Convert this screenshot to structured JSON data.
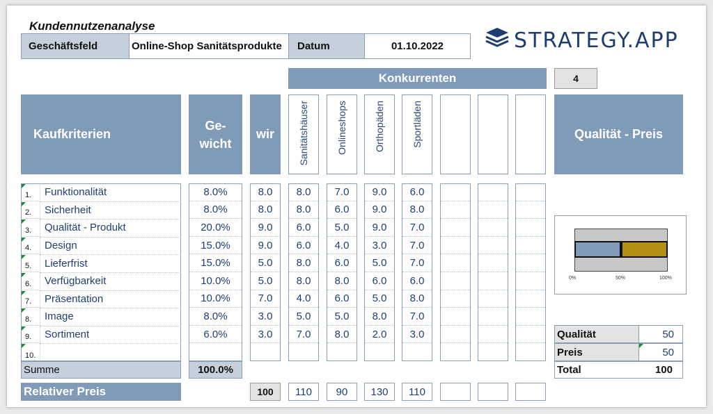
{
  "title": "Kundennutzenanalyse",
  "header": {
    "field_label": "Geschäftsfeld",
    "field_value": "Online-Shop Sanitätsprodukte",
    "date_label": "Datum",
    "date_value": "01.10.2022"
  },
  "logo": {
    "text": "STRATEGY.APP",
    "icon": "stacked-layers-icon"
  },
  "competitors_header": "Konkurrenten",
  "competitor_count": "4",
  "columns": {
    "criteria": "Kaufkriterien",
    "weight_line1": "Ge-",
    "weight_line2": "wicht",
    "us": "wir",
    "quality_price": "Qualität - Preis"
  },
  "competitors": [
    "Sanitätshäuser",
    "Onlineshops",
    "Orthopäden",
    "Sportläden",
    "",
    "",
    ""
  ],
  "rows": [
    {
      "n": "1.",
      "name": "Funktionalität",
      "weight": "8.0%",
      "us": "8.0",
      "c": [
        "8.0",
        "7.0",
        "9.0",
        "6.0",
        "",
        "",
        ""
      ]
    },
    {
      "n": "2.",
      "name": "Sicherheit",
      "weight": "8.0%",
      "us": "8.0",
      "c": [
        "8.0",
        "6.0",
        "9.0",
        "8.0",
        "",
        "",
        ""
      ]
    },
    {
      "n": "3.",
      "name": "Qualität - Produkt",
      "weight": "20.0%",
      "us": "9.0",
      "c": [
        "6.0",
        "5.0",
        "9.0",
        "7.0",
        "",
        "",
        ""
      ]
    },
    {
      "n": "4.",
      "name": "Design",
      "weight": "15.0%",
      "us": "9.0",
      "c": [
        "6.0",
        "4.0",
        "3.0",
        "7.0",
        "",
        "",
        ""
      ]
    },
    {
      "n": "5.",
      "name": "Lieferfrist",
      "weight": "15.0%",
      "us": "5.0",
      "c": [
        "8.0",
        "6.0",
        "5.0",
        "7.0",
        "",
        "",
        ""
      ]
    },
    {
      "n": "6.",
      "name": "Verfügbarkeit",
      "weight": "10.0%",
      "us": "5.0",
      "c": [
        "8.0",
        "8.0",
        "6.0",
        "6.0",
        "",
        "",
        ""
      ]
    },
    {
      "n": "7.",
      "name": "Präsentation",
      "weight": "10.0%",
      "us": "7.0",
      "c": [
        "4.0",
        "6.0",
        "5.0",
        "8.0",
        "",
        "",
        ""
      ]
    },
    {
      "n": "8.",
      "name": "Image",
      "weight": "8.0%",
      "us": "3.0",
      "c": [
        "5.0",
        "5.0",
        "8.0",
        "7.0",
        "",
        "",
        ""
      ]
    },
    {
      "n": "9.",
      "name": "Sortiment",
      "weight": "6.0%",
      "us": "3.0",
      "c": [
        "7.0",
        "8.0",
        "2.0",
        "3.0",
        "",
        "",
        ""
      ]
    },
    {
      "n": "10.",
      "name": "",
      "weight": "",
      "us": "",
      "c": [
        "",
        "",
        "",
        "",
        "",
        "",
        ""
      ]
    }
  ],
  "sum": {
    "label": "Summe",
    "value": "100.0%"
  },
  "relative_price": {
    "label": "Relativer Preis",
    "us": "100",
    "c": [
      "110",
      "90",
      "130",
      "110",
      "",
      "",
      ""
    ]
  },
  "mini_chart": {
    "quality_fraction": 0.5,
    "price_fraction": 0.5,
    "quality_color": "#7f9bb8",
    "price_color": "#b38f14",
    "ticks": [
      "0%",
      "50%",
      "100%"
    ]
  },
  "qp_table": [
    {
      "label": "Qualität",
      "value": "50"
    },
    {
      "label": "Preis",
      "value": "50"
    }
  ],
  "total": {
    "label": "Total",
    "value": "100"
  }
}
